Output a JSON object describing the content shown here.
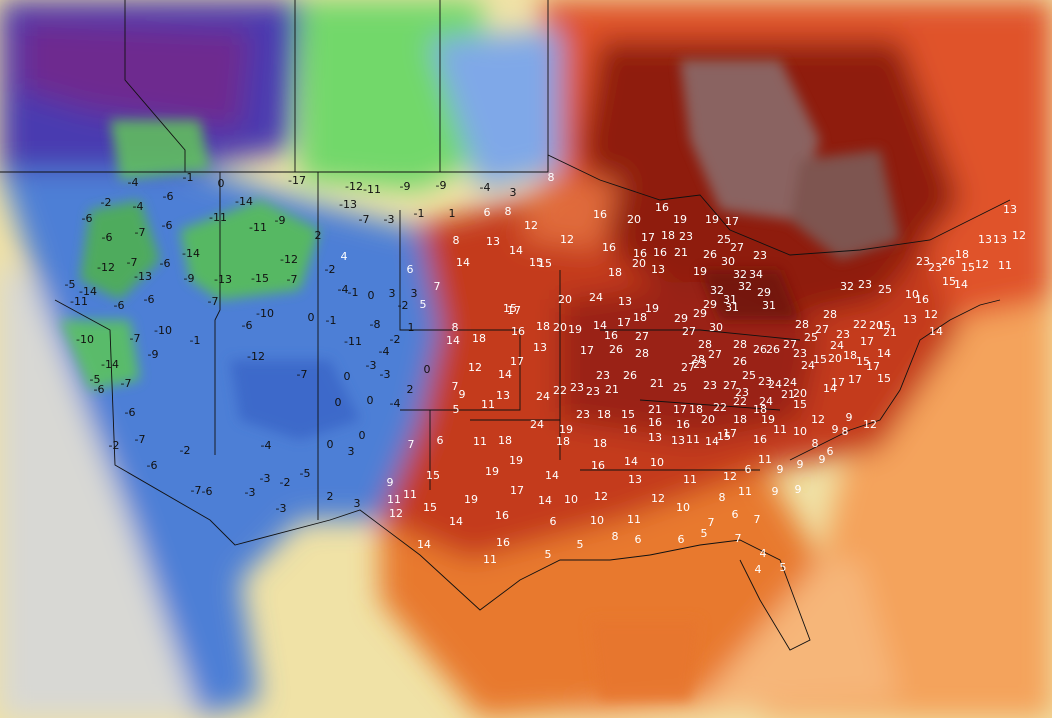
{
  "map_labels": [
    -4,
    -2,
    -4,
    -6,
    0,
    -1,
    -14,
    -17,
    -12,
    -11,
    -13,
    -9,
    -9,
    -4,
    3,
    8,
    -6,
    -6,
    -7,
    -6,
    -14,
    -11,
    -11,
    -9,
    2,
    -7,
    -3,
    -1,
    1,
    6,
    8,
    12,
    -12,
    -13,
    -7,
    -6,
    -9,
    -13,
    -15,
    -12,
    -2,
    4,
    -7,
    -5,
    -14,
    -11,
    -6,
    -10,
    -6,
    -7,
    -10,
    0,
    -4,
    -1,
    0,
    3,
    -8,
    -1,
    3,
    6,
    8,
    14,
    13,
    14,
    15,
    12,
    -10,
    -7,
    -9,
    -1,
    -6,
    -12,
    -7,
    -11,
    -4,
    -3,
    -3,
    0,
    -2,
    1,
    -2,
    7,
    5,
    8,
    14,
    -14,
    -5,
    -7,
    -6,
    -6,
    -7,
    -2,
    -6,
    -2,
    -7,
    -6,
    -4,
    -5,
    -3,
    -2,
    -3,
    -3,
    0,
    3,
    0,
    2,
    3,
    0,
    0,
    -4,
    2,
    0,
    9,
    7,
    5,
    11,
    12,
    14,
    18,
    17,
    16,
    18,
    15,
    15,
    16,
    16,
    20,
    16,
    19,
    19,
    17,
    17,
    18,
    23,
    25,
    27,
    30,
    16,
    16,
    20,
    18,
    13,
    21,
    19,
    26,
    32,
    34,
    23,
    32,
    31,
    32,
    29,
    31,
    31,
    29,
    29,
    29,
    27,
    30,
    28,
    28,
    26,
    26,
    27,
    28,
    27,
    23,
    28,
    22,
    20,
    23,
    25,
    32,
    23,
    23,
    26,
    18,
    13,
    13,
    13,
    12,
    15,
    12,
    11,
    15,
    14,
    10,
    16,
    12,
    13,
    14,
    21,
    15,
    15,
    17,
    14,
    15,
    17,
    17,
    18,
    24,
    25,
    23,
    24,
    15,
    20,
    20,
    24,
    13,
    19,
    18,
    17,
    14,
    19,
    20,
    17,
    26,
    28,
    16,
    27,
    13,
    17,
    22,
    23,
    21,
    23,
    23,
    26,
    21,
    25,
    23,
    27,
    28,
    27,
    26,
    23,
    27,
    25,
    23,
    24,
    23,
    22,
    24,
    24,
    20,
    18,
    19,
    15,
    21,
    14,
    17,
    12,
    9,
    9,
    8,
    12,
    13,
    24,
    23,
    18,
    15,
    21,
    17,
    18,
    22,
    18,
    20,
    17,
    16,
    16,
    16,
    18,
    19,
    24,
    18,
    11,
    6,
    7,
    15,
    19,
    19,
    14,
    18,
    16,
    14,
    13,
    13,
    11,
    14,
    15,
    16,
    11,
    10,
    8,
    11,
    6,
    9,
    9,
    9,
    6,
    9,
    11,
    11,
    12,
    15,
    19,
    17,
    14,
    10,
    12,
    13,
    10,
    11,
    12,
    11,
    9,
    9,
    12,
    10,
    8,
    6,
    7,
    7,
    6,
    5,
    7,
    6,
    10,
    8,
    11,
    6,
    16,
    14,
    14,
    16,
    11,
    5,
    5,
    4,
    5,
    4
  ]
}
